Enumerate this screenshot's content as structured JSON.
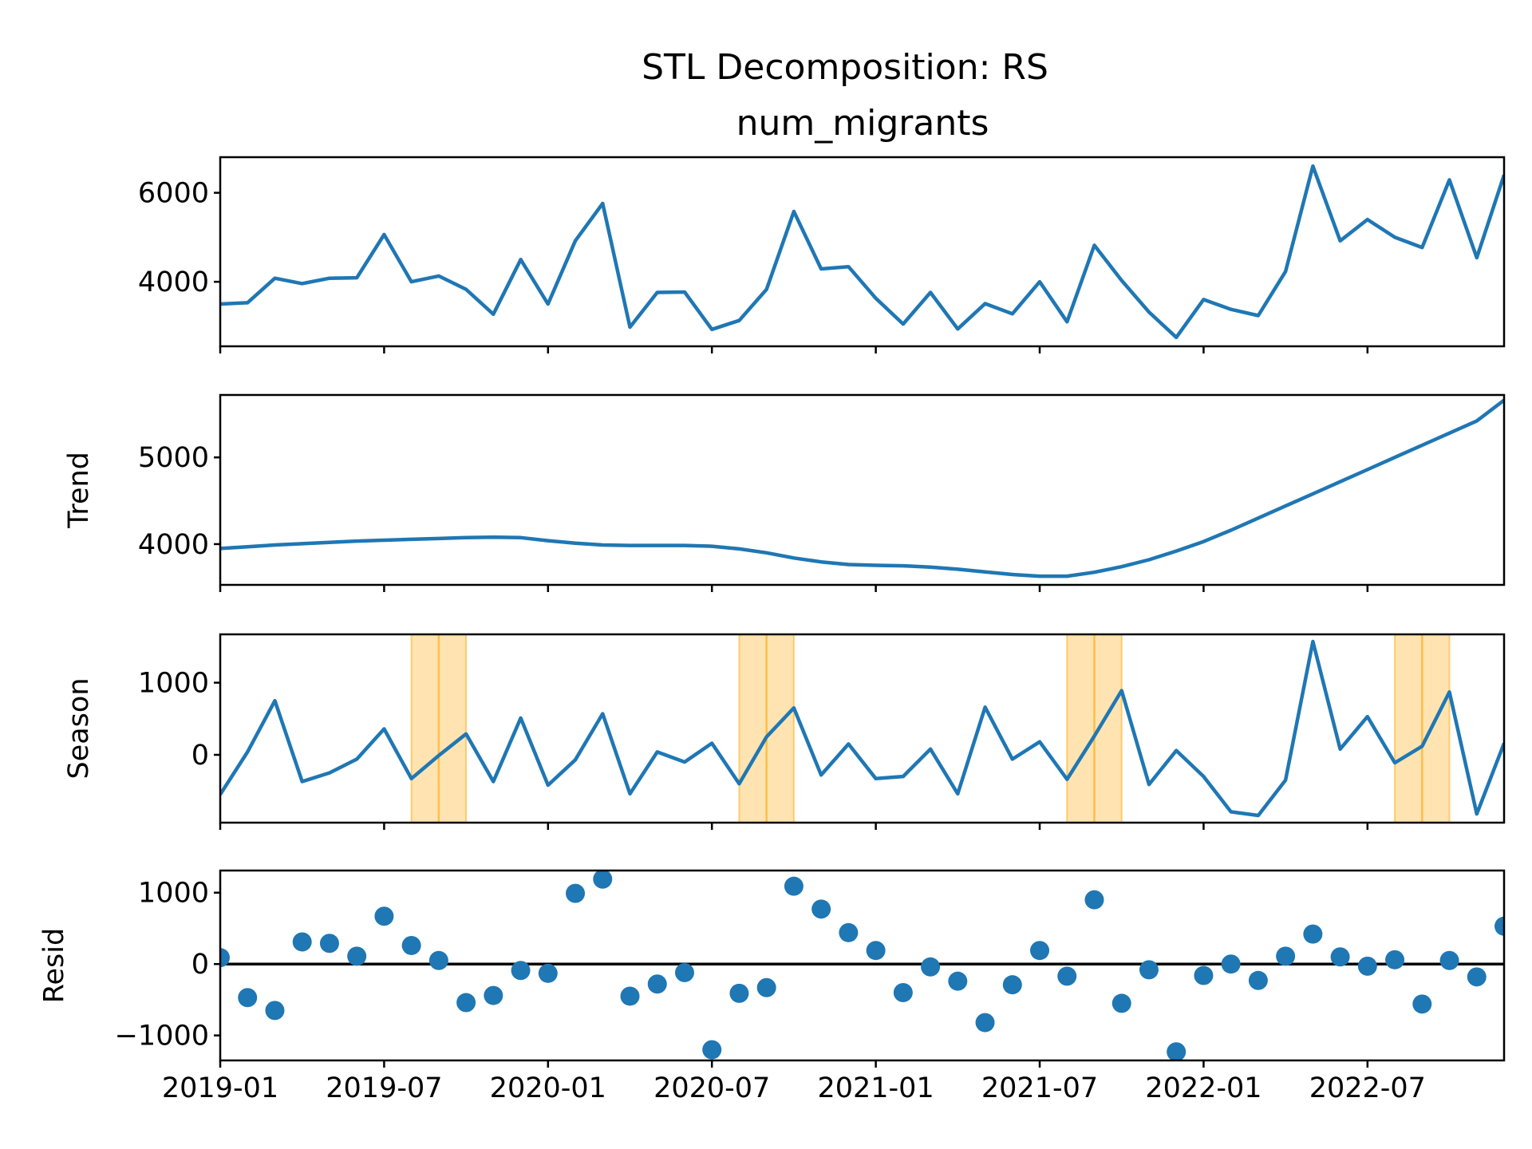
{
  "chart_data": {
    "type": "line",
    "title": "STL Decomposition: RS",
    "x": [
      "2019-01",
      "2019-02",
      "2019-03",
      "2019-04",
      "2019-05",
      "2019-06",
      "2019-07",
      "2019-08",
      "2019-09",
      "2019-10",
      "2019-11",
      "2019-12",
      "2020-01",
      "2020-02",
      "2020-03",
      "2020-04",
      "2020-05",
      "2020-06",
      "2020-07",
      "2020-08",
      "2020-09",
      "2020-10",
      "2020-11",
      "2020-12",
      "2021-01",
      "2021-02",
      "2021-03",
      "2021-04",
      "2021-05",
      "2021-06",
      "2021-07",
      "2021-08",
      "2021-09",
      "2021-10",
      "2021-11",
      "2021-12",
      "2022-01",
      "2022-02",
      "2022-03",
      "2022-04",
      "2022-05",
      "2022-06",
      "2022-07",
      "2022-08",
      "2022-09",
      "2022-10",
      "2022-11",
      "2022-12"
    ],
    "xticks": [
      "2019-01",
      "2019-07",
      "2020-01",
      "2020-07",
      "2021-01",
      "2021-07",
      "2022-01",
      "2022-07"
    ],
    "xlim": [
      "2019-01",
      "2022-12"
    ],
    "highlight_months": [
      "2019-09",
      "2020-09",
      "2021-09",
      "2022-09"
    ],
    "colors": {
      "line": "#1f77b4",
      "highlight": "#ffa500",
      "zero_line": "#000000"
    },
    "panels": [
      {
        "name": "num_migrants",
        "panel_title": "num_migrants",
        "ylabel": "",
        "kind": "line",
        "ylim": [
          2550,
          6800
        ],
        "yticks": [
          4000,
          6000
        ],
        "yticklabels": [
          "4000",
          "6000"
        ],
        "values": [
          3500,
          3530,
          4080,
          3960,
          4080,
          4090,
          5060,
          4000,
          4130,
          3830,
          3270,
          4500,
          3500,
          4920,
          5760,
          2980,
          3760,
          3770,
          2930,
          3130,
          3830,
          5580,
          4290,
          4340,
          3630,
          3050,
          3760,
          2940,
          3510,
          3280,
          4000,
          3100,
          4820,
          4030,
          3320,
          2750,
          3600,
          3380,
          3240,
          4230,
          6600,
          4920,
          5400,
          5000,
          4770,
          6290,
          4540,
          6400
        ]
      },
      {
        "name": "trend",
        "ylabel": "Trend",
        "kind": "line",
        "ylim": [
          3530,
          5720
        ],
        "yticks": [
          4000,
          5000
        ],
        "yticklabels": [
          "4000",
          "5000"
        ],
        "values": [
          3950,
          3970,
          3990,
          4005,
          4020,
          4035,
          4045,
          4055,
          4065,
          4075,
          4080,
          4075,
          4040,
          4010,
          3990,
          3985,
          3985,
          3985,
          3975,
          3945,
          3900,
          3840,
          3795,
          3765,
          3755,
          3750,
          3735,
          3710,
          3680,
          3650,
          3630,
          3630,
          3675,
          3740,
          3820,
          3920,
          4030,
          4160,
          4300,
          4440,
          4580,
          4720,
          4860,
          5000,
          5140,
          5280,
          5420,
          5660
        ]
      },
      {
        "name": "season",
        "ylabel": "Season",
        "kind": "line",
        "ylim": [
          -940,
          1670
        ],
        "yticks": [
          0,
          1000
        ],
        "yticklabels": [
          "0",
          "1000"
        ],
        "values": [
          -550,
          40,
          750,
          -370,
          -250,
          -60,
          360,
          -330,
          -10,
          290,
          -370,
          510,
          -420,
          -70,
          570,
          -540,
          40,
          -100,
          160,
          -400,
          250,
          650,
          -280,
          150,
          -330,
          -300,
          80,
          -540,
          660,
          -60,
          180,
          -340,
          260,
          890,
          -410,
          60,
          -300,
          -790,
          -840,
          -350,
          1570,
          80,
          530,
          -110,
          120,
          870,
          -820,
          160
        ]
      },
      {
        "name": "resid",
        "ylabel": "Resid",
        "kind": "scatter",
        "ylim": [
          -1350,
          1310
        ],
        "yticks": [
          -1000,
          0,
          1000
        ],
        "yticklabels": [
          "−1000",
          "0",
          "1000"
        ],
        "zero_line": true,
        "values": [
          90,
          -470,
          -650,
          310,
          290,
          110,
          670,
          260,
          50,
          -540,
          -440,
          -90,
          -130,
          990,
          1190,
          -450,
          -280,
          -120,
          -1200,
          -410,
          -330,
          1090,
          770,
          440,
          190,
          -400,
          -40,
          -240,
          -820,
          -290,
          190,
          -170,
          900,
          -550,
          -80,
          -1230,
          -160,
          0,
          -230,
          110,
          420,
          100,
          -30,
          60,
          -560,
          50,
          -180,
          530
        ]
      }
    ]
  }
}
